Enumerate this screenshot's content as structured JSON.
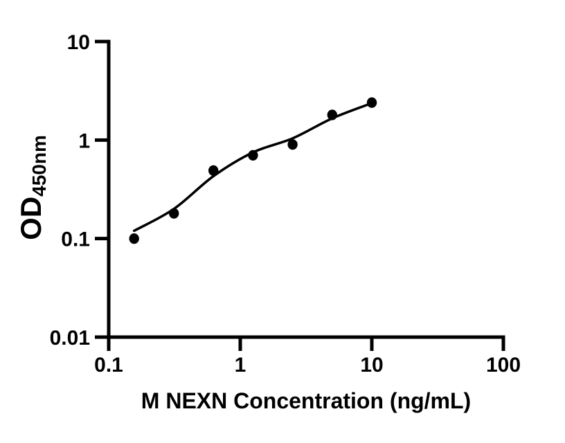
{
  "figure": {
    "background_color": "#ffffff",
    "ink_color": "#000000"
  },
  "chart_data": {
    "type": "scatter",
    "title": "",
    "x_axis": {
      "label": "M NEXN Concentration (ng/mL)",
      "scale": "log",
      "min": 0.1,
      "max": 100,
      "ticks": [
        0.1,
        1,
        10,
        100
      ],
      "tick_labels": [
        "0.1",
        "1",
        "10",
        "100"
      ]
    },
    "y_axis": {
      "label_main": "OD",
      "label_sub": "450nm",
      "scale": "log",
      "min": 0.01,
      "max": 10,
      "ticks": [
        0.01,
        0.1,
        1,
        10
      ],
      "tick_labels": [
        "0.01",
        "0.1",
        "1",
        "10"
      ]
    },
    "series": [
      {
        "name": "standard-points",
        "kind": "scatter",
        "marker": "filled-circle",
        "color": "#000000",
        "x": [
          0.156,
          0.313,
          0.625,
          1.25,
          2.5,
          5,
          10
        ],
        "y": [
          0.1,
          0.18,
          0.49,
          0.7,
          0.9,
          1.8,
          2.4
        ]
      },
      {
        "name": "fit-curve",
        "kind": "line",
        "color": "#000000",
        "x": [
          0.156,
          0.313,
          0.625,
          1.25,
          2.5,
          5,
          10
        ],
        "y": [
          0.12,
          0.2,
          0.43,
          0.75,
          1.04,
          1.66,
          2.37
        ]
      }
    ],
    "grid": false,
    "legend": null
  }
}
